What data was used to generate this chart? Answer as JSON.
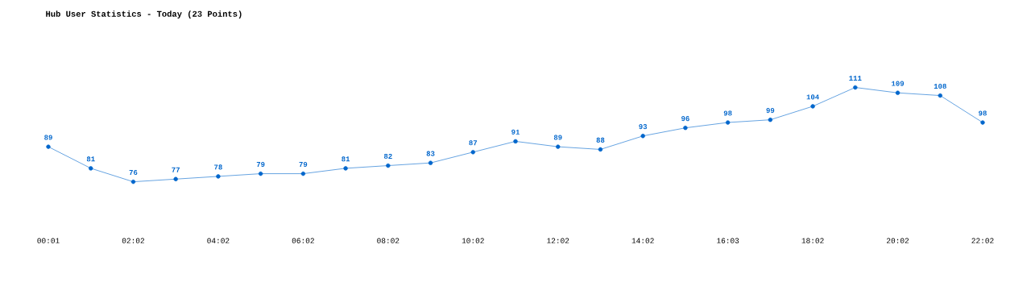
{
  "chart_data": {
    "type": "line",
    "title": "Hub User Statistics - Today (23 Points)",
    "categories": [
      "00:01",
      null,
      "02:02",
      null,
      "04:02",
      null,
      "06:02",
      null,
      "08:02",
      null,
      "10:02",
      null,
      "12:02",
      null,
      "14:02",
      null,
      "16:03",
      null,
      "18:02",
      null,
      "20:02",
      null,
      "22:02"
    ],
    "values": [
      89,
      81,
      76,
      77,
      78,
      79,
      79,
      81,
      82,
      83,
      87,
      91,
      89,
      88,
      93,
      96,
      98,
      99,
      104,
      111,
      109,
      108,
      98
    ],
    "color": "#0066cc",
    "marker": "circle",
    "line_style": "solid",
    "data_labels": true,
    "grid": false
  }
}
